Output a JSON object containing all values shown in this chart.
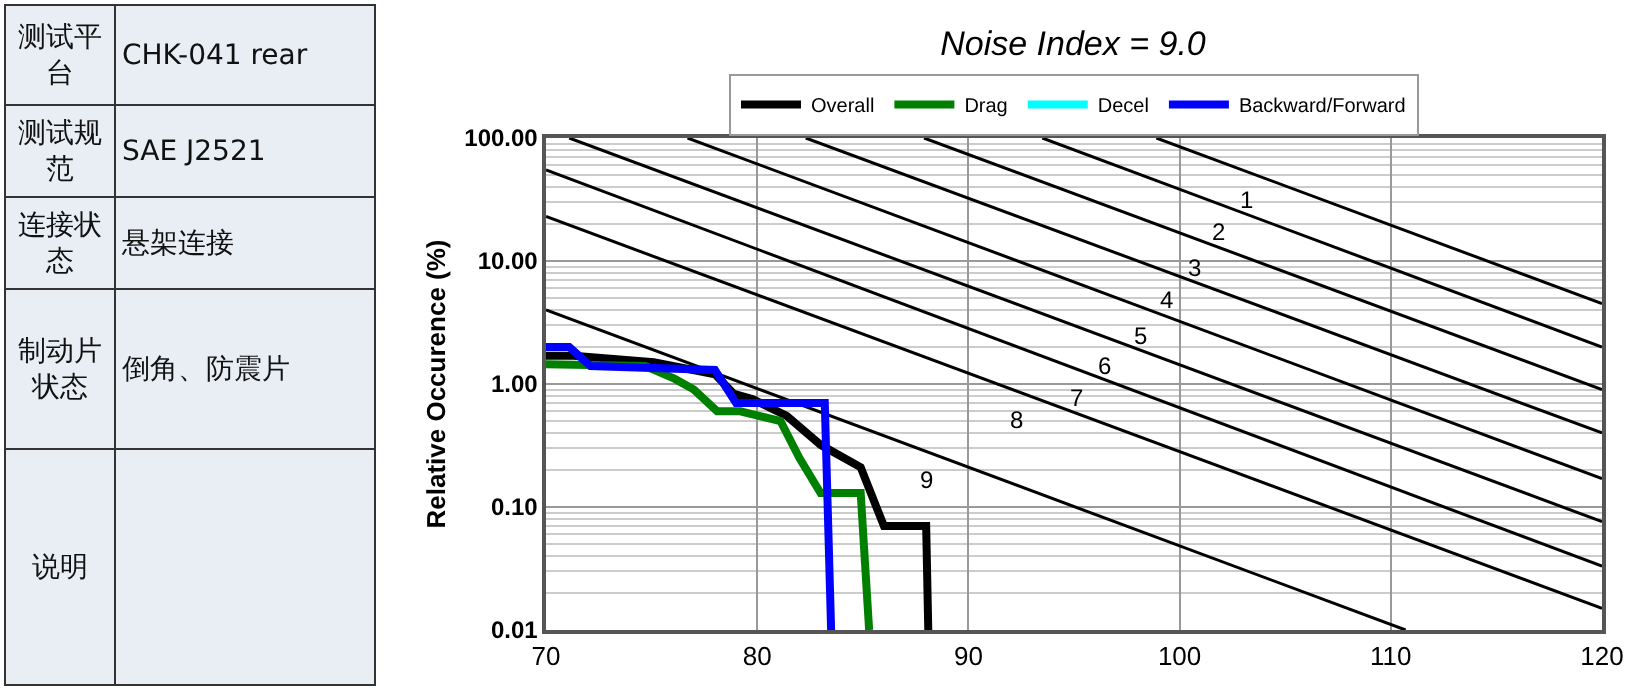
{
  "chart_data": [
    {
      "type": "other",
      "annotations": [
        "测试平台",
        "CHK-041 rear",
        "测试规范",
        "SAE J2521",
        "连接状态",
        "悬架连接",
        "制动片状态",
        "倒角、防震片",
        "说明"
      ]
    },
    {
      "type": "line",
      "title": "Noise Index = 9.0",
      "ylabel": "Relative Occurence (%)",
      "log": "y",
      "grid": true,
      "legend": "top",
      "marker": "none",
      "line_style": "solid",
      "xlim": [
        70,
        120
      ],
      "xticks": [
        70,
        80,
        90,
        100,
        110,
        120
      ],
      "ylim": [
        0.01,
        100
      ],
      "yticks": [
        {
          "value": 0.01,
          "label": "0.01"
        },
        {
          "value": 0.1,
          "label": "0.10"
        },
        {
          "value": 1,
          "label": "1.00"
        },
        {
          "value": 10,
          "label": "10.00"
        },
        {
          "value": 100,
          "label": "100.00"
        }
      ],
      "series": [
        {
          "name": "Overall",
          "color": "#000000",
          "x": [
            70,
            71.3,
            73.2,
            75.1,
            78,
            78.9,
            79.8,
            81.4,
            83,
            84.9,
            86,
            88,
            88.1
          ],
          "values": [
            1.7,
            1.7,
            1.6,
            1.5,
            1.2,
            0.83,
            0.75,
            0.55,
            0.32,
            0.21,
            0.07,
            0.07,
            0.01
          ]
        },
        {
          "name": "Drag",
          "color": "#008000",
          "x": [
            70,
            74.7,
            76.1,
            77,
            78.1,
            79.2,
            81.1,
            82,
            83,
            84.9,
            85.3
          ],
          "values": [
            1.45,
            1.4,
            1.1,
            0.9,
            0.6,
            0.6,
            0.5,
            0.25,
            0.13,
            0.13,
            0.01
          ]
        },
        {
          "name": "Decel",
          "color": "#00ffff",
          "values": [
            null
          ]
        },
        {
          "name": "Backward/Forward",
          "color": "#0000ff",
          "x": [
            70,
            71.1,
            72.1,
            78,
            79,
            83.2,
            83.5
          ],
          "values": [
            2.0,
            2.0,
            1.4,
            1.3,
            0.7,
            0.7,
            0.01
          ]
        },
        {
          "color": "#000000",
          "x": [
            98.9,
            120
          ],
          "values": [
            100,
            4.5
          ]
        },
        {
          "color": "#000000",
          "x": [
            93.5,
            120
          ],
          "values": [
            100,
            2.0
          ]
        },
        {
          "color": "#000000",
          "x": [
            87.9,
            120
          ],
          "values": [
            100,
            0.9
          ]
        },
        {
          "color": "#000000",
          "x": [
            82.3,
            120
          ],
          "values": [
            100,
            0.4
          ]
        },
        {
          "color": "#000000",
          "x": [
            76.7,
            120
          ],
          "values": [
            100,
            0.17
          ]
        },
        {
          "color": "#000000",
          "x": [
            71.1,
            120
          ],
          "values": [
            100,
            0.076
          ]
        },
        {
          "color": "#000000",
          "x": [
            70,
            120
          ],
          "values": [
            55,
            0.033
          ]
        },
        {
          "color": "#000000",
          "x": [
            70,
            120
          ],
          "values": [
            23,
            0.015
          ]
        },
        {
          "color": "#000000",
          "x": [
            70,
            110.7
          ],
          "values": [
            4.0,
            0.01
          ]
        }
      ],
      "annotations": [
        {
          "text": "1",
          "x": 103.2,
          "y": 53
        },
        {
          "text": "2",
          "x": 101.9,
          "y": 29
        },
        {
          "text": "3",
          "x": 100.7,
          "y": 15
        },
        {
          "text": "4",
          "x": 99.4,
          "y": 8.2
        },
        {
          "text": "5",
          "x": 98.2,
          "y": 4.2
        },
        {
          "text": "6",
          "x": 96.5,
          "y": 2.4
        },
        {
          "text": "7",
          "x": 95.1,
          "y": 1.3
        },
        {
          "text": "8",
          "x": 92.3,
          "y": 0.87
        },
        {
          "text": "9",
          "x": 88.0,
          "y": 0.28
        }
      ]
    }
  ]
}
